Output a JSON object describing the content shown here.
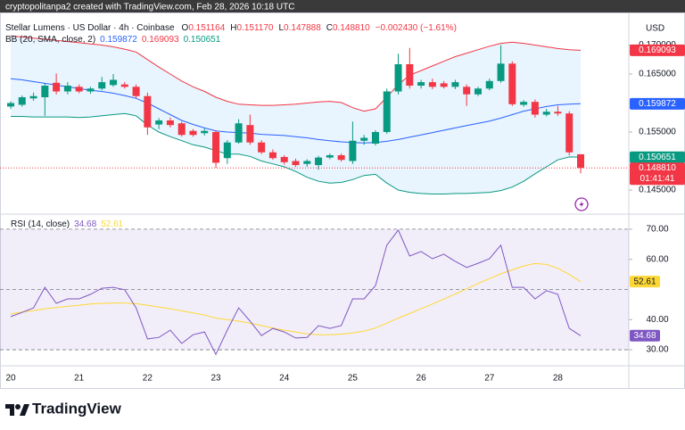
{
  "header": "cryptopolitanpa2 created with TradingView.com, Feb 28, 2026 10:18 UTC",
  "footer": "TradingView",
  "chart_data": [
    {
      "type": "candlestick",
      "symbol": "Stellar Lumens · US Dollar · 4h · Coinbase",
      "currency": "USD",
      "ohlc_legend": [
        {
          "key": "O",
          "value": "0.151164"
        },
        {
          "key": "H",
          "value": "0.151170"
        },
        {
          "key": "L",
          "value": "0.147888"
        },
        {
          "key": "C",
          "value": "0.148810"
        }
      ],
      "change": "−0.002430 (−1.61%)",
      "last_price_label": "0.148810",
      "countdown": "01:41:41",
      "up_color": "#089981",
      "down_color": "#f23645",
      "categories": [
        "20",
        null,
        null,
        null,
        null,
        null,
        "21",
        null,
        null,
        null,
        null,
        null,
        "22",
        null,
        null,
        null,
        null,
        null,
        "23",
        null,
        null,
        null,
        null,
        null,
        "24",
        null,
        null,
        null,
        null,
        null,
        "25",
        null,
        null,
        null,
        null,
        null,
        "26",
        null,
        null,
        null,
        null,
        null,
        "27",
        null,
        null,
        null,
        null,
        null,
        "28",
        null,
        null
      ],
      "open": [
        0.1594,
        0.1597,
        0.1608,
        0.161,
        0.1635,
        0.162,
        0.1628,
        0.162,
        0.1625,
        0.1631,
        0.1632,
        0.1628,
        0.1612,
        0.1563,
        0.157,
        0.1565,
        0.1552,
        0.1548,
        0.155,
        0.1505,
        0.1532,
        0.1562,
        0.1532,
        0.1515,
        0.1507,
        0.15,
        0.1495,
        0.1493,
        0.1506,
        0.151,
        0.15,
        0.1535,
        0.153,
        0.155,
        0.162,
        0.1667,
        0.163,
        0.1636,
        0.1634,
        0.1628,
        0.1628,
        0.1615,
        0.1625,
        0.1638,
        0.1668,
        0.1597,
        0.1602,
        0.158,
        0.1585,
        0.1582,
        0.151164
      ],
      "high": [
        0.1603,
        0.1613,
        0.1618,
        0.1634,
        0.1651,
        0.1636,
        0.1632,
        0.1628,
        0.1645,
        0.165,
        0.1636,
        0.1632,
        0.1618,
        0.1574,
        0.1575,
        0.1568,
        0.1555,
        0.1556,
        0.1553,
        0.1536,
        0.1572,
        0.158,
        0.1536,
        0.152,
        0.151,
        0.1504,
        0.1503,
        0.1509,
        0.1513,
        0.1513,
        0.1568,
        0.1545,
        0.1553,
        0.1625,
        0.1685,
        0.1695,
        0.164,
        0.1642,
        0.1638,
        0.164,
        0.1632,
        0.1628,
        0.1642,
        0.17,
        0.1672,
        0.1605,
        0.1606,
        0.159,
        0.1595,
        0.1586,
        0.15117
      ],
      "low": [
        0.159,
        0.1594,
        0.1604,
        0.1578,
        0.1615,
        0.1615,
        0.1617,
        0.1616,
        0.1622,
        0.1628,
        0.1625,
        0.1608,
        0.1545,
        0.1555,
        0.1558,
        0.1542,
        0.1542,
        0.1544,
        0.1488,
        0.1495,
        0.153,
        0.1528,
        0.1512,
        0.1502,
        0.1494,
        0.149,
        0.149,
        0.1485,
        0.1503,
        0.1499,
        0.1495,
        0.1528,
        0.1527,
        0.1547,
        0.1615,
        0.1625,
        0.1625,
        0.1624,
        0.1625,
        0.1624,
        0.1595,
        0.1612,
        0.1622,
        0.1635,
        0.1595,
        0.1594,
        0.1575,
        0.1577,
        0.1578,
        0.151,
        0.147888
      ],
      "close": [
        0.16,
        0.161,
        0.1612,
        0.163,
        0.162,
        0.163,
        0.162,
        0.1625,
        0.1636,
        0.164,
        0.1628,
        0.1612,
        0.1558,
        0.157,
        0.1562,
        0.1545,
        0.1545,
        0.1552,
        0.1497,
        0.1532,
        0.1565,
        0.1532,
        0.1515,
        0.1505,
        0.1498,
        0.1493,
        0.15,
        0.1506,
        0.151,
        0.1502,
        0.1535,
        0.154,
        0.155,
        0.162,
        0.1667,
        0.163,
        0.1636,
        0.1628,
        0.1628,
        0.1636,
        0.1615,
        0.1625,
        0.1638,
        0.1668,
        0.1598,
        0.1602,
        0.158,
        0.1585,
        0.1582,
        0.1515,
        0.14881
      ],
      "indicator": "BB (20, SMA, close, 2)",
      "overlays": [
        {
          "color": "#2962ff",
          "last_label": "0.159872",
          "values": [
            0.1642,
            0.164,
            0.1637,
            0.1634,
            0.1631,
            0.1628,
            0.1625,
            0.1622,
            0.162,
            0.1617,
            0.1613,
            0.1608,
            0.16,
            0.159,
            0.158,
            0.157,
            0.1563,
            0.1557,
            0.1552,
            0.155,
            0.1549,
            0.1548,
            0.1546,
            0.1545,
            0.1544,
            0.1542,
            0.154,
            0.1537,
            0.1535,
            0.1533,
            0.1532,
            0.1531,
            0.1532,
            0.1534,
            0.1537,
            0.1541,
            0.1545,
            0.1549,
            0.1553,
            0.1557,
            0.1561,
            0.1565,
            0.1569,
            0.1574,
            0.158,
            0.1586,
            0.159,
            0.1594,
            0.1597,
            0.1598,
            0.159872
          ]
        },
        {
          "color": "#f23645",
          "last_label": "0.169093",
          "values": [
            0.1716,
            0.1714,
            0.1712,
            0.171,
            0.1708,
            0.1706,
            0.1704,
            0.1702,
            0.17,
            0.1697,
            0.1693,
            0.1688,
            0.1675,
            0.1662,
            0.165,
            0.1638,
            0.1628,
            0.162,
            0.161,
            0.1603,
            0.1598,
            0.1597,
            0.1596,
            0.1596,
            0.1597,
            0.1598,
            0.16,
            0.1602,
            0.1603,
            0.1601,
            0.1592,
            0.1586,
            0.159,
            0.161,
            0.1632,
            0.1648,
            0.1656,
            0.1664,
            0.1672,
            0.168,
            0.1686,
            0.1692,
            0.1698,
            0.1703,
            0.1705,
            0.1703,
            0.17,
            0.1697,
            0.1694,
            0.1692,
            0.169093
          ]
        },
        {
          "color": "#089981",
          "last_label": "0.150651",
          "values": [
            0.1577,
            0.1577,
            0.1576,
            0.1576,
            0.1576,
            0.1576,
            0.1575,
            0.1576,
            0.1578,
            0.158,
            0.1582,
            0.1578,
            0.1562,
            0.155,
            0.1542,
            0.1535,
            0.1528,
            0.1524,
            0.1518,
            0.1512,
            0.1512,
            0.1508,
            0.15,
            0.1495,
            0.149,
            0.1482,
            0.1472,
            0.1465,
            0.1462,
            0.1463,
            0.1468,
            0.1475,
            0.1477,
            0.1462,
            0.145,
            0.1446,
            0.1444,
            0.1443,
            0.1443,
            0.1444,
            0.1444,
            0.1445,
            0.1446,
            0.1449,
            0.1455,
            0.1465,
            0.1478,
            0.149,
            0.1502,
            0.1507,
            0.150651
          ]
        }
      ],
      "ylim": [
        0.14115,
        0.17562
      ],
      "yticks": [
        {
          "value": 0.17,
          "label": "0.170000"
        },
        {
          "value": 0.165,
          "label": "0.165000"
        },
        {
          "value": 0.155,
          "label": "0.155000"
        },
        {
          "value": 0.145,
          "label": "0.145000"
        }
      ]
    },
    {
      "type": "line",
      "title": "RSI (14, close)",
      "series": [
        {
          "color": "#7e57c2",
          "last_label": "34.68",
          "values": [
            41.0,
            42.4,
            43.9,
            50.7,
            45.4,
            46.9,
            46.9,
            48.4,
            50.4,
            50.7,
            49.9,
            43.9,
            33.6,
            34.1,
            36.5,
            32.1,
            35.0,
            35.9,
            28.5,
            36.5,
            43.9,
            39.5,
            34.7,
            37.1,
            35.9,
            33.9,
            34.1,
            38.0,
            37.1,
            38.0,
            46.9,
            46.9,
            51.3,
            64.7,
            69.7,
            61.1,
            62.6,
            60.2,
            61.7,
            59.3,
            57.3,
            58.7,
            60.2,
            64.7,
            50.7,
            50.7,
            46.9,
            49.6,
            48.4,
            37.1,
            34.68
          ]
        },
        {
          "color": "#fdd835",
          "last_label": "52.61",
          "values": [
            41.9,
            42.5,
            43.0,
            43.6,
            44.0,
            44.4,
            44.8,
            45.2,
            45.4,
            45.5,
            45.5,
            45.3,
            44.8,
            44.2,
            43.6,
            42.9,
            42.2,
            41.5,
            40.5,
            40.0,
            39.5,
            38.8,
            38.0,
            37.2,
            36.5,
            35.9,
            35.3,
            35.0,
            35.0,
            35.2,
            35.6,
            36.2,
            37.2,
            38.8,
            40.5,
            42.0,
            43.6,
            45.2,
            46.8,
            48.5,
            50.2,
            52.0,
            53.6,
            55.2,
            56.5,
            57.8,
            58.6,
            58.3,
            57.0,
            55.0,
            52.61
          ]
        }
      ],
      "levels": [
        70,
        50,
        30
      ],
      "ylim": [
        24.7,
        74.4
      ],
      "yticks": [
        {
          "value": 70,
          "label": "70.00"
        },
        {
          "value": 60,
          "label": "60.00"
        },
        {
          "value": 40,
          "label": "40.00"
        },
        {
          "value": 30,
          "label": "30.00"
        }
      ]
    }
  ]
}
